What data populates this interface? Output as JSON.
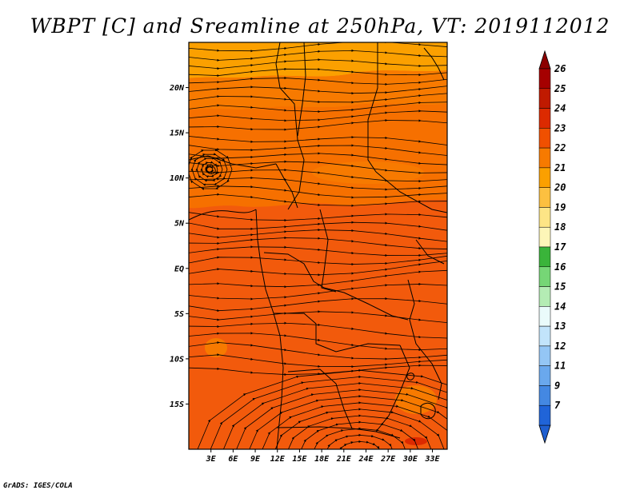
{
  "title": "WBPT [C] and Sreamline at 250hPa, VT: 2019112012",
  "credit": "GrADS: IGES/COLA",
  "map": {
    "lon_range": [
      0,
      35
    ],
    "lat_range": [
      -20,
      25
    ],
    "lon_ticks": [
      "3E",
      "6E",
      "9E",
      "12E",
      "15E",
      "18E",
      "21E",
      "24E",
      "27E",
      "30E",
      "33E"
    ],
    "lon_tick_values": [
      3,
      6,
      9,
      12,
      15,
      18,
      21,
      24,
      27,
      30,
      33
    ],
    "lat_ticks": [
      "20N",
      "15N",
      "10N",
      "5N",
      "EQ",
      "5S",
      "10S",
      "15S"
    ],
    "lat_tick_values": [
      20,
      15,
      10,
      5,
      0,
      -5,
      -10,
      -15
    ],
    "background_color": "#f25a0c",
    "border_color": "#000000"
  },
  "colorbar": {
    "labels": [
      "26",
      "25",
      "24",
      "23",
      "22",
      "21",
      "20",
      "19",
      "18",
      "17",
      "16",
      "15",
      "14",
      "13",
      "12",
      "11",
      "9",
      "7"
    ],
    "colors": [
      "#a50000",
      "#c01a00",
      "#dc2a00",
      "#f05000",
      "#f77a00",
      "#fba000",
      "#fcc040",
      "#fde586",
      "#fdf6b8",
      "#3ab43a",
      "#76d676",
      "#b4ecb4",
      "#eafbfb",
      "#c2e4fb",
      "#94c6f5",
      "#6aa8ed",
      "#4488e2",
      "#2064d8"
    ],
    "top_arrow_color": "#8c0000",
    "bottom_arrow_color": "#1f5fd0"
  }
}
